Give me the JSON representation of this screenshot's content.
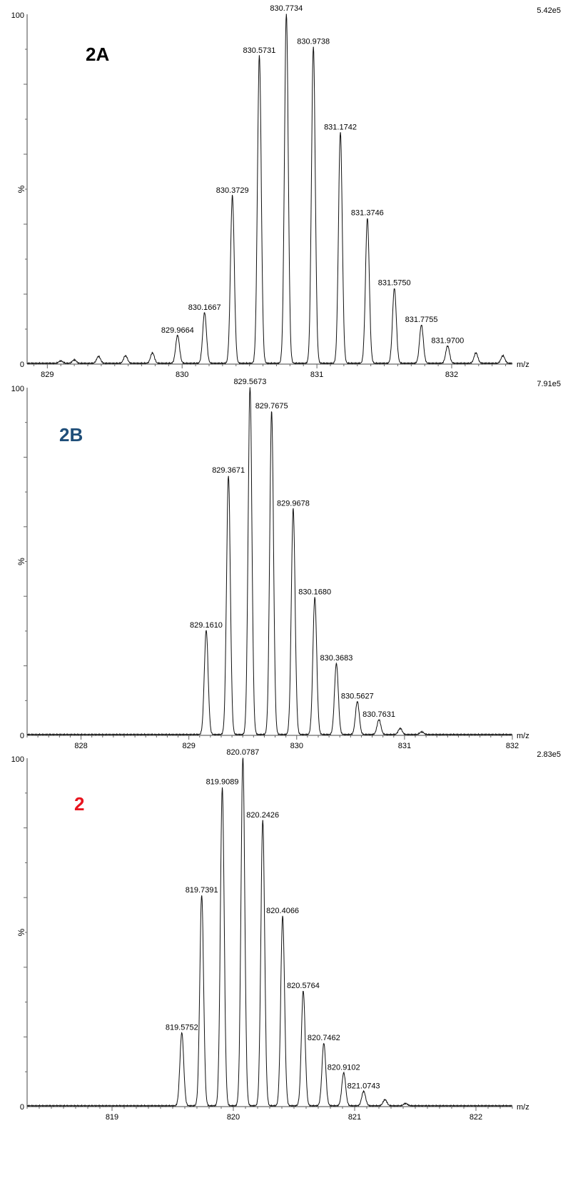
{
  "chart_data": [
    {
      "type": "line",
      "panel_label": "2A",
      "label_color": "#000000",
      "scale_text": "5.42e5",
      "ylabel": "%",
      "xlabel": "m/z",
      "xlim": [
        828.85,
        832.45
      ],
      "ylim": [
        0,
        100
      ],
      "y_ticks": [
        "100",
        "0"
      ],
      "x_ticks": [
        829,
        830,
        831,
        832
      ],
      "peaks": [
        {
          "x": 829.1,
          "y": 0.7
        },
        {
          "x": 829.2,
          "y": 1.0
        },
        {
          "x": 829.38,
          "y": 2.0
        },
        {
          "x": 829.58,
          "y": 2.2
        },
        {
          "x": 829.78,
          "y": 3.0
        },
        {
          "x": 829.9664,
          "y": 8.0,
          "label": "829.9664"
        },
        {
          "x": 830.1667,
          "y": 14.5,
          "label": "830.1667"
        },
        {
          "x": 830.3729,
          "y": 48.0,
          "label": "830.3729"
        },
        {
          "x": 830.5731,
          "y": 88.0,
          "label": "830.5731"
        },
        {
          "x": 830.7734,
          "y": 100.0,
          "label": "830.7734"
        },
        {
          "x": 830.9738,
          "y": 90.5,
          "label": "830.9738"
        },
        {
          "x": 831.1742,
          "y": 66.0,
          "label": "831.1742"
        },
        {
          "x": 831.3746,
          "y": 41.5,
          "label": "831.3746"
        },
        {
          "x": 831.575,
          "y": 21.5,
          "label": "831.5750"
        },
        {
          "x": 831.7755,
          "y": 11.0,
          "label": "831.7755"
        },
        {
          "x": 831.97,
          "y": 5.0,
          "label": "831.9700"
        },
        {
          "x": 832.18,
          "y": 3.0
        },
        {
          "x": 832.38,
          "y": 2.2
        }
      ]
    },
    {
      "type": "line",
      "panel_label": "2B",
      "label_color": "#1f4e79",
      "scale_text": "7.91e5",
      "ylabel": "%",
      "xlabel": "m/z",
      "xlim": [
        827.5,
        832.0
      ],
      "ylim": [
        0,
        100
      ],
      "y_ticks": [
        "100",
        "0"
      ],
      "x_ticks": [
        828,
        829,
        830,
        831,
        832
      ],
      "peaks": [
        {
          "x": 829.161,
          "y": 30.0,
          "label": "829.1610"
        },
        {
          "x": 829.3671,
          "y": 74.5,
          "label": "829.3671"
        },
        {
          "x": 829.5673,
          "y": 100.0,
          "label": "829.5673"
        },
        {
          "x": 829.7675,
          "y": 93.0,
          "label": "829.7675"
        },
        {
          "x": 829.9678,
          "y": 65.0,
          "label": "829.9678"
        },
        {
          "x": 830.168,
          "y": 39.5,
          "label": "830.1680"
        },
        {
          "x": 830.3683,
          "y": 20.5,
          "label": "830.3683"
        },
        {
          "x": 830.5627,
          "y": 9.5,
          "label": "830.5627"
        },
        {
          "x": 830.7631,
          "y": 4.3,
          "label": "830.7631"
        },
        {
          "x": 830.96,
          "y": 1.8
        },
        {
          "x": 831.16,
          "y": 0.8
        }
      ]
    },
    {
      "type": "line",
      "panel_label": "2",
      "label_color": "#e8141e",
      "scale_text": "2.83e5",
      "ylabel": "%",
      "xlabel": "m/z",
      "xlim": [
        818.3,
        822.3
      ],
      "ylim": [
        0,
        100
      ],
      "y_ticks": [
        "100",
        "0"
      ],
      "x_ticks": [
        819,
        820,
        821,
        822
      ],
      "peaks": [
        {
          "x": 819.5752,
          "y": 21.0,
          "label": "819.5752"
        },
        {
          "x": 819.7391,
          "y": 60.5,
          "label": "819.7391"
        },
        {
          "x": 819.9089,
          "y": 91.5,
          "label": "819.9089"
        },
        {
          "x": 820.0787,
          "y": 100.0,
          "label": "820.0787"
        },
        {
          "x": 820.2426,
          "y": 82.0,
          "label": "820.2426"
        },
        {
          "x": 820.4066,
          "y": 54.5,
          "label": "820.4066"
        },
        {
          "x": 820.5764,
          "y": 33.0,
          "label": "820.5764"
        },
        {
          "x": 820.7462,
          "y": 18.0,
          "label": "820.7462"
        },
        {
          "x": 820.9102,
          "y": 9.5,
          "label": "820.9102"
        },
        {
          "x": 821.0743,
          "y": 4.2,
          "label": "821.0743"
        },
        {
          "x": 821.25,
          "y": 1.8
        },
        {
          "x": 821.42,
          "y": 0.7
        }
      ]
    }
  ]
}
